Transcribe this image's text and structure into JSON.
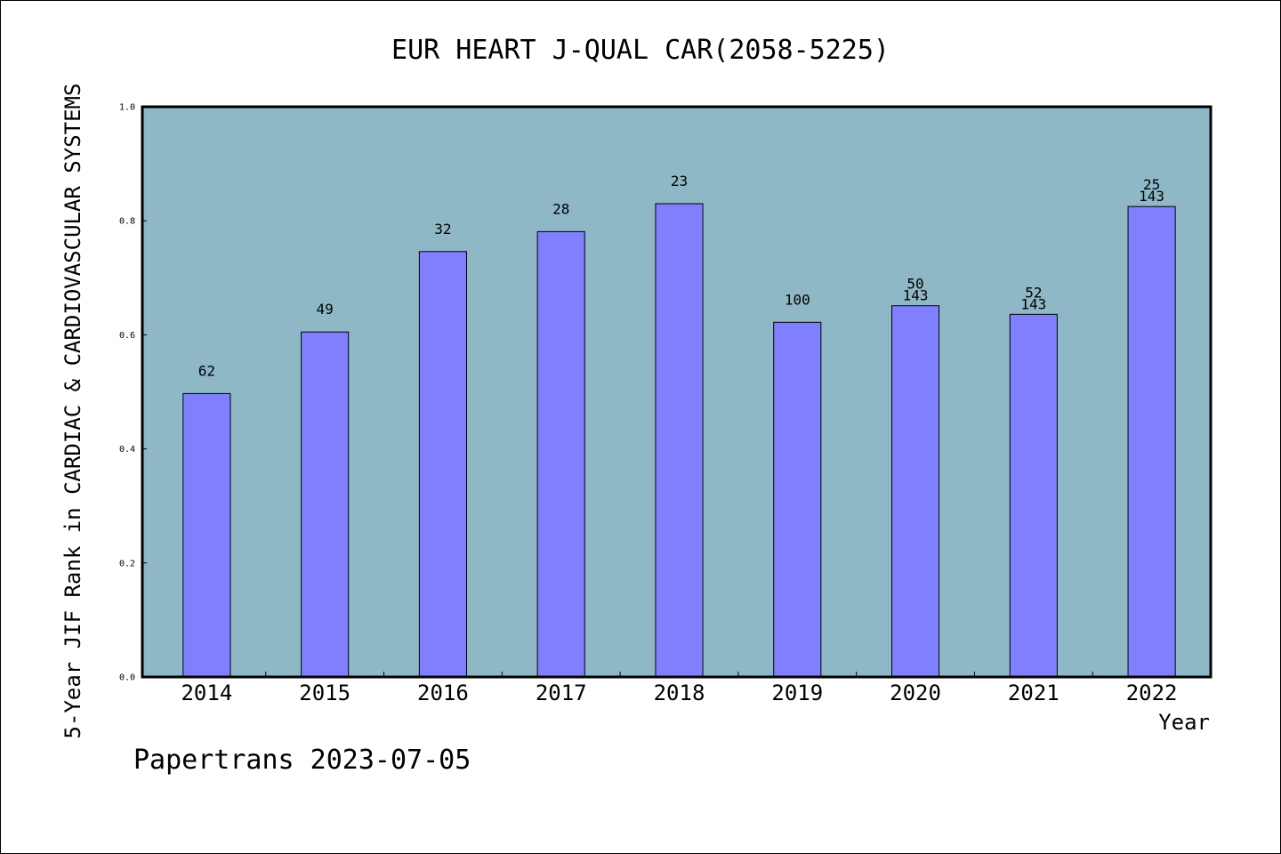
{
  "chart_data": {
    "type": "bar",
    "title": "EUR HEART J-QUAL CAR(2058-5225)",
    "ylabel": "5-Year JIF Rank in CARDIAC & CARDIOVASCULAR SYSTEMS",
    "xlabel": "Year",
    "categories": [
      "2014",
      "2015",
      "2016",
      "2017",
      "2018",
      "2019",
      "2020",
      "2021",
      "2022"
    ],
    "values": [
      0.497,
      0.605,
      0.746,
      0.781,
      0.83,
      0.622,
      0.651,
      0.636,
      0.825
    ],
    "bar_labels": [
      [
        "62"
      ],
      [
        "49"
      ],
      [
        "32"
      ],
      [
        "28"
      ],
      [
        "23"
      ],
      [
        "100"
      ],
      [
        "50",
        "143"
      ],
      [
        "52",
        "143"
      ],
      [
        "25",
        "143"
      ]
    ],
    "ylim": [
      0,
      1.0
    ],
    "yticks": [
      "0.0",
      "0.2",
      "0.4",
      "0.6",
      "0.8",
      "1.0"
    ],
    "grid": false,
    "colors": {
      "plot_background": "#8fb8c6",
      "bar_fill": "#8080ff",
      "bar_stroke": "#000000"
    }
  },
  "footer": "Papertrans 2023-07-05"
}
